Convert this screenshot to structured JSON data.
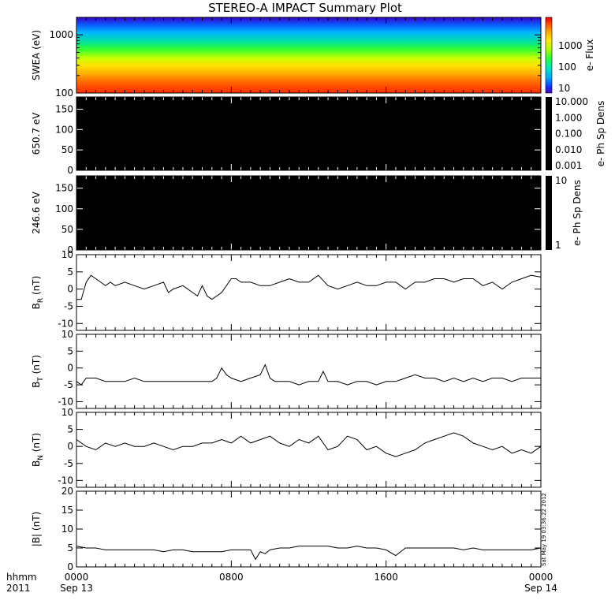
{
  "title": "STEREO-A IMPACT Summary Plot",
  "timestamp": "Sat May 19 03:36:22 2012",
  "x_axis": {
    "row_labels": [
      "hhmm",
      "2011"
    ],
    "ticks": [
      {
        "hhmm": "0000",
        "date": "Sep 13",
        "hours": 0
      },
      {
        "hhmm": "0800",
        "date": "",
        "hours": 8
      },
      {
        "hhmm": "1600",
        "date": "",
        "hours": 16
      },
      {
        "hhmm": "0000",
        "date": "Sep 14",
        "hours": 24
      }
    ]
  },
  "colors": {
    "line": "#000000",
    "background": "#ffffff",
    "panel_fill": "#000000"
  },
  "chart_data": [
    {
      "type": "heatmap",
      "ylabel": "SWEA (eV)",
      "yscale": "log",
      "ylim": [
        100,
        2000
      ],
      "yticks": [
        "1000",
        "100"
      ],
      "colorbar": {
        "label": "e- Flux",
        "scale": "log",
        "ticks": [
          "1000",
          "100",
          "10"
        ]
      },
      "xlim_hours": [
        0,
        24
      ]
    },
    {
      "type": "heatmap",
      "ylabel": "650.7 eV",
      "ylim": [
        0,
        180
      ],
      "yticks": [
        "150",
        "100",
        "50",
        "0"
      ],
      "fill": "black (no data)",
      "colorbar": {
        "label": "e- Ph Sp Dens",
        "scale": "log",
        "ticks": [
          "10.000",
          "1.000",
          "0.100",
          "0.010",
          "0.001"
        ]
      },
      "xlim_hours": [
        0,
        24
      ]
    },
    {
      "type": "heatmap",
      "ylabel": "246.6 eV",
      "ylim": [
        0,
        180
      ],
      "yticks": [
        "150",
        "100",
        "50",
        "0"
      ],
      "fill": "black (no data)",
      "colorbar": {
        "label": "e- Ph Sp Dens",
        "scale": "log",
        "ticks": [
          "10",
          "1"
        ]
      },
      "xlim_hours": [
        0,
        24
      ]
    },
    {
      "type": "line",
      "ylabel": "B",
      "ylabel_sub": "R",
      "ylabel_unit": "(nT)",
      "ylim": [
        -12,
        10
      ],
      "yticks": [
        "10",
        "5",
        "0",
        "-5",
        "-10"
      ],
      "xlim_hours": [
        0,
        24
      ],
      "series": [
        {
          "x": [
            0,
            0.25,
            0.5,
            0.75,
            1,
            1.25,
            1.5,
            1.75,
            2,
            2.5,
            3,
            3.5,
            4,
            4.5,
            4.75,
            5,
            5.5,
            6,
            6.25,
            6.5,
            6.75,
            7,
            7.5,
            8,
            8.25,
            8.5,
            9,
            9.5,
            10,
            10.5,
            11,
            11.5,
            12,
            12.5,
            13,
            13.5,
            14,
            14.5,
            15,
            15.5,
            16,
            16.5,
            17,
            17.5,
            18,
            18.5,
            19,
            19.5,
            20,
            20.5,
            21,
            21.5,
            22,
            22.5,
            23,
            23.5,
            24
          ],
          "y": [
            -3,
            -3,
            2,
            4,
            3,
            2,
            1,
            2,
            1,
            2,
            1,
            0,
            1,
            2,
            -1,
            0,
            1,
            -1,
            -2,
            1,
            -2,
            -3,
            -1,
            3,
            3,
            2,
            2,
            1,
            1,
            2,
            3,
            2,
            2,
            4,
            1,
            0,
            1,
            2,
            1,
            1,
            2,
            2,
            0,
            2,
            2,
            3,
            3,
            2,
            3,
            3,
            1,
            2,
            0,
            2,
            3,
            4,
            3.5
          ]
        }
      ]
    },
    {
      "type": "line",
      "ylabel": "B",
      "ylabel_sub": "T",
      "ylabel_unit": "(nT)",
      "ylim": [
        -12,
        10
      ],
      "yticks": [
        "10",
        "5",
        "0",
        "-5",
        "-10"
      ],
      "xlim_hours": [
        0,
        24
      ],
      "series": [
        {
          "x": [
            0,
            0.25,
            0.5,
            1,
            1.5,
            2,
            2.5,
            3,
            3.5,
            4,
            4.5,
            5,
            5.5,
            6,
            6.5,
            7,
            7.25,
            7.5,
            7.75,
            8,
            8.5,
            9,
            9.5,
            9.75,
            10,
            10.25,
            10.5,
            11,
            11.5,
            12,
            12.5,
            12.75,
            13,
            13.5,
            14,
            14.5,
            15,
            15.5,
            16,
            16.5,
            17,
            17.5,
            18,
            18.5,
            19,
            19.5,
            20,
            20.5,
            21,
            21.5,
            22,
            22.5,
            23,
            23.5,
            24
          ],
          "y": [
            -4,
            -5,
            -3,
            -3,
            -4,
            -4,
            -4,
            -3,
            -4,
            -4,
            -4,
            -4,
            -4,
            -4,
            -4,
            -4,
            -3,
            0,
            -2,
            -3,
            -4,
            -3,
            -2,
            1,
            -3,
            -4,
            -4,
            -4,
            -5,
            -4,
            -4,
            -1,
            -4,
            -4,
            -5,
            -4,
            -4,
            -5,
            -4,
            -4,
            -3,
            -2,
            -3,
            -3,
            -4,
            -3,
            -4,
            -3,
            -4,
            -3,
            -3,
            -4,
            -3,
            -3,
            -3
          ]
        }
      ]
    },
    {
      "type": "line",
      "ylabel": "B",
      "ylabel_sub": "N",
      "ylabel_unit": "(nT)",
      "ylim": [
        -12,
        10
      ],
      "yticks": [
        "10",
        "5",
        "0",
        "-5",
        "-10"
      ],
      "xlim_hours": [
        0,
        24
      ],
      "series": [
        {
          "x": [
            0,
            0.5,
            1,
            1.5,
            2,
            2.5,
            3,
            3.5,
            4,
            4.5,
            5,
            5.5,
            6,
            6.5,
            7,
            7.5,
            8,
            8.5,
            9,
            9.5,
            10,
            10.5,
            11,
            11.5,
            12,
            12.5,
            13,
            13.5,
            14,
            14.5,
            15,
            15.5,
            16,
            16.5,
            17,
            17.5,
            18,
            18.5,
            19,
            19.5,
            20,
            20.5,
            21,
            21.5,
            22,
            22.5,
            23,
            23.5,
            24
          ],
          "y": [
            2,
            0,
            -1,
            1,
            0,
            1,
            0,
            0,
            1,
            0,
            -1,
            0,
            0,
            1,
            1,
            2,
            1,
            3,
            1,
            2,
            3,
            1,
            0,
            2,
            1,
            3,
            -1,
            0,
            3,
            2,
            -1,
            0,
            -2,
            -3,
            -2,
            -1,
            1,
            2,
            3,
            4,
            3,
            1,
            0,
            -1,
            0,
            -2,
            -1,
            -2,
            0
          ]
        }
      ]
    },
    {
      "type": "line",
      "ylabel": "|B|",
      "ylabel_sub": "",
      "ylabel_unit": "(nT)",
      "ylim": [
        0,
        20
      ],
      "yticks": [
        "20",
        "15",
        "10",
        "5",
        "0"
      ],
      "xlim_hours": [
        0,
        24
      ],
      "series": [
        {
          "x": [
            0,
            0.5,
            1,
            1.5,
            2,
            2.5,
            3,
            3.5,
            4,
            4.5,
            5,
            5.5,
            6,
            6.5,
            7,
            7.5,
            8,
            8.5,
            9,
            9.25,
            9.5,
            9.75,
            10,
            10.5,
            11,
            11.5,
            12,
            12.5,
            13,
            13.5,
            14,
            14.5,
            15,
            15.5,
            16,
            16.5,
            17,
            17.5,
            18,
            18.5,
            19,
            19.5,
            20,
            20.5,
            21,
            21.5,
            22,
            22.5,
            23,
            23.5,
            24
          ],
          "y": [
            5.5,
            5,
            5,
            4.5,
            4.5,
            4.5,
            4.5,
            4.5,
            4.5,
            4,
            4.5,
            4.5,
            4,
            4,
            4,
            4,
            4.5,
            4.5,
            4.5,
            2,
            4,
            3.5,
            4.5,
            5,
            5,
            5.5,
            5.5,
            5.5,
            5.5,
            5,
            5,
            5.5,
            5,
            5,
            4.5,
            3,
            5,
            5,
            5,
            5,
            5,
            5,
            4.5,
            5,
            4.5,
            4.5,
            4.5,
            4.5,
            4.5,
            4.5,
            5
          ]
        }
      ]
    }
  ]
}
